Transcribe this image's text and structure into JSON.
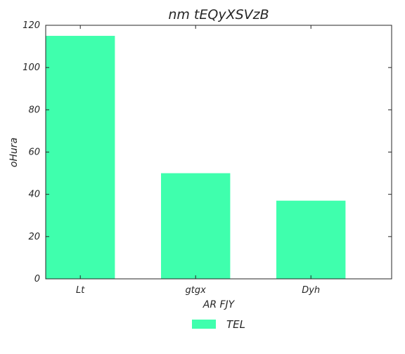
{
  "chart_data": {
    "type": "bar",
    "title": "nm tEQyXSVzB",
    "xlabel": "AR FJY",
    "ylabel": "oHura",
    "categories": [
      "Lt",
      "gtgx",
      "Dyh"
    ],
    "series": [
      {
        "name": "TEL",
        "values": [
          115,
          50,
          37
        ],
        "color": "#3fffad"
      }
    ],
    "ylim": [
      0,
      120
    ],
    "yticks": [
      0,
      20,
      40,
      60,
      80,
      100,
      120
    ],
    "grid": false,
    "legend_position": "bottom-center"
  }
}
